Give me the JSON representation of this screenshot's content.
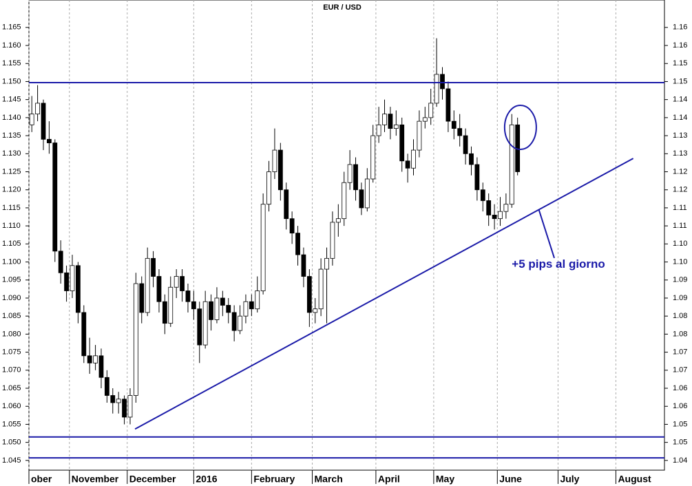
{
  "chart_data": {
    "type": "candlestick",
    "title": "EUR / USD",
    "x": [
      1,
      3,
      5,
      7,
      9,
      11,
      13,
      15,
      17,
      19,
      21,
      23,
      25,
      27,
      29,
      31,
      33,
      35,
      37,
      39,
      41,
      43,
      45,
      47,
      49,
      51,
      53,
      55,
      57,
      59,
      61,
      63,
      65,
      67,
      69,
      71,
      73,
      75,
      77,
      79,
      81,
      83,
      85,
      87,
      89,
      91,
      93,
      95,
      97,
      99,
      101,
      103,
      105,
      107,
      109,
      111,
      113,
      115,
      117,
      119,
      121,
      123,
      125,
      127,
      129,
      131,
      133,
      135,
      137,
      139,
      141,
      143,
      145,
      147,
      149,
      151,
      153,
      155,
      157,
      159,
      161,
      163,
      165,
      167,
      169
    ],
    "open": [
      1.138,
      1.141,
      1.144,
      1.134,
      1.133,
      1.103,
      1.097,
      1.092,
      1.099,
      1.086,
      1.074,
      1.072,
      1.074,
      1.068,
      1.063,
      1.061,
      1.062,
      1.057,
      1.063,
      1.094,
      1.086,
      1.101,
      1.096,
      1.089,
      1.083,
      1.093,
      1.096,
      1.092,
      1.089,
      1.087,
      1.077,
      1.089,
      1.084,
      1.09,
      1.088,
      1.086,
      1.081,
      1.085,
      1.089,
      1.087,
      1.092,
      1.116,
      1.125,
      1.131,
      1.12,
      1.112,
      1.108,
      1.102,
      1.096,
      1.086,
      1.087,
      1.098,
      1.101,
      1.111,
      1.112,
      1.122,
      1.127,
      1.12,
      1.115,
      1.123,
      1.135,
      1.138,
      1.141,
      1.137,
      1.138,
      1.128,
      1.126,
      1.131,
      1.139,
      1.14,
      1.144,
      1.152,
      1.148,
      1.139,
      1.137,
      1.135,
      1.13,
      1.127,
      1.12,
      1.117,
      1.113,
      1.112,
      1.114,
      1.116,
      1.138
    ],
    "high": [
      1.146,
      1.149,
      1.145,
      1.139,
      1.134,
      1.106,
      1.099,
      1.102,
      1.1,
      1.088,
      1.079,
      1.077,
      1.076,
      1.07,
      1.065,
      1.064,
      1.063,
      1.065,
      1.097,
      1.096,
      1.104,
      1.103,
      1.098,
      1.091,
      1.096,
      1.098,
      1.098,
      1.094,
      1.092,
      1.089,
      1.092,
      1.091,
      1.093,
      1.092,
      1.09,
      1.088,
      1.088,
      1.091,
      1.091,
      1.096,
      1.119,
      1.128,
      1.137,
      1.133,
      1.122,
      1.114,
      1.11,
      1.104,
      1.098,
      1.09,
      1.101,
      1.104,
      1.114,
      1.116,
      1.125,
      1.131,
      1.129,
      1.122,
      1.126,
      1.138,
      1.143,
      1.145,
      1.143,
      1.142,
      1.14,
      1.13,
      1.134,
      1.142,
      1.143,
      1.148,
      1.162,
      1.154,
      1.15,
      1.142,
      1.141,
      1.137,
      1.132,
      1.129,
      1.122,
      1.119,
      1.116,
      1.118,
      1.119,
      1.141,
      1.14
    ],
    "low": [
      1.136,
      1.139,
      1.131,
      1.13,
      1.1,
      1.094,
      1.089,
      1.09,
      1.083,
      1.072,
      1.069,
      1.07,
      1.065,
      1.061,
      1.058,
      1.058,
      1.055,
      1.055,
      1.061,
      1.083,
      1.085,
      1.093,
      1.086,
      1.08,
      1.082,
      1.09,
      1.089,
      1.086,
      1.084,
      1.072,
      1.076,
      1.081,
      1.083,
      1.085,
      1.083,
      1.078,
      1.08,
      1.083,
      1.085,
      1.086,
      1.091,
      1.114,
      1.123,
      1.117,
      1.109,
      1.105,
      1.099,
      1.093,
      1.082,
      1.083,
      1.085,
      1.083,
      1.099,
      1.107,
      1.11,
      1.12,
      1.117,
      1.113,
      1.114,
      1.122,
      1.133,
      1.136,
      1.134,
      1.135,
      1.125,
      1.122,
      1.124,
      1.129,
      1.137,
      1.138,
      1.143,
      1.145,
      1.136,
      1.134,
      1.132,
      1.127,
      1.124,
      1.117,
      1.114,
      1.11,
      1.109,
      1.11,
      1.112,
      1.115,
      1.124
    ],
    "close": [
      1.141,
      1.144,
      1.134,
      1.133,
      1.103,
      1.097,
      1.092,
      1.099,
      1.086,
      1.074,
      1.072,
      1.074,
      1.068,
      1.063,
      1.061,
      1.062,
      1.057,
      1.063,
      1.094,
      1.086,
      1.101,
      1.096,
      1.089,
      1.083,
      1.093,
      1.096,
      1.092,
      1.089,
      1.087,
      1.077,
      1.089,
      1.084,
      1.09,
      1.088,
      1.086,
      1.081,
      1.085,
      1.089,
      1.087,
      1.092,
      1.116,
      1.125,
      1.131,
      1.12,
      1.112,
      1.108,
      1.102,
      1.096,
      1.086,
      1.087,
      1.098,
      1.101,
      1.111,
      1.112,
      1.122,
      1.127,
      1.12,
      1.115,
      1.123,
      1.135,
      1.138,
      1.141,
      1.137,
      1.138,
      1.128,
      1.126,
      1.131,
      1.139,
      1.14,
      1.144,
      1.152,
      1.148,
      1.139,
      1.137,
      1.135,
      1.13,
      1.127,
      1.12,
      1.117,
      1.113,
      1.112,
      1.114,
      1.116,
      1.138,
      1.125
    ],
    "up_color": "#ffffff",
    "down_color": "#000000",
    "line_color": "#1a1aa8",
    "xlim": [
      0,
      219.8
    ],
    "ylim": [
      1.0423,
      1.1726
    ],
    "y2lim": [
      1.0423,
      1.1726
    ],
    "xticks": [
      {
        "value": 0,
        "label": "ober"
      },
      {
        "value": 14,
        "label": "November"
      },
      {
        "value": 34,
        "label": "December"
      },
      {
        "value": 57,
        "label": "2016"
      },
      {
        "value": 77,
        "label": "February"
      },
      {
        "value": 98,
        "label": "March"
      },
      {
        "value": 120,
        "label": "April"
      },
      {
        "value": 140,
        "label": "May"
      },
      {
        "value": 162,
        "label": "June"
      },
      {
        "value": 183,
        "label": "July"
      },
      {
        "value": 203,
        "label": "August"
      }
    ],
    "yticks": [
      {
        "value": 1.045,
        "label": "1.045"
      },
      {
        "value": 1.05,
        "label": "1.050"
      },
      1.055,
      {
        "value": 1.06,
        "label": "1.060"
      },
      1.065,
      {
        "value": 1.07,
        "label": "1.070"
      },
      1.075,
      {
        "value": 1.08,
        "label": "1.080"
      },
      1.085,
      {
        "value": 1.09,
        "label": "1.090"
      },
      1.095,
      {
        "value": 1.1,
        "label": "1.100"
      },
      1.105,
      {
        "value": 1.11,
        "label": "1.110"
      },
      1.115,
      {
        "value": 1.12,
        "label": "1.120"
      },
      1.125,
      {
        "value": 1.13,
        "label": "1.130"
      },
      1.135,
      {
        "value": 1.14,
        "label": "1.140"
      },
      1.145,
      {
        "value": 1.15,
        "label": "1.150"
      },
      1.155,
      {
        "value": 1.16,
        "label": "1.160"
      },
      1.165
    ],
    "y2ticks": [
      {
        "value": 1.045,
        "label": "1.04"
      },
      1.05,
      {
        "value": 1.055,
        "label": "1.05"
      },
      1.06,
      {
        "value": 1.065,
        "label": "1.06"
      },
      1.07,
      {
        "value": 1.075,
        "label": "1.07"
      },
      1.08,
      {
        "value": 1.085,
        "label": "1.08"
      },
      1.09,
      {
        "value": 1.095,
        "label": "1.09"
      },
      {
        "value": 1.1,
        "label": "1.10"
      },
      {
        "value": 1.105,
        "label": "1.10"
      },
      1.11,
      {
        "value": 1.115,
        "label": "1.11"
      },
      1.12,
      {
        "value": 1.125,
        "label": "1.12"
      },
      1.13,
      {
        "value": 1.135,
        "label": "1.13"
      },
      1.14,
      {
        "value": 1.145,
        "label": "1.14"
      },
      1.15,
      {
        "value": 1.155,
        "label": "1.15"
      },
      1.16,
      {
        "value": 1.165,
        "label": "1.16"
      }
    ],
    "grid": true,
    "hlines": [
      1.1497,
      1.0515,
      1.0457
    ],
    "trendline": {
      "x": [
        36.7,
        209
      ],
      "y": [
        1.0537,
        1.1287
      ]
    },
    "circle": {
      "x": 170,
      "y": 1.1373
    },
    "annotation": {
      "text": "+5 pips al giorno",
      "x": 167,
      "y": 1.0992,
      "pointer": {
        "x": [
          181.7,
          176.4
        ],
        "y": [
          1.1011,
          1.1144
        ]
      }
    }
  }
}
